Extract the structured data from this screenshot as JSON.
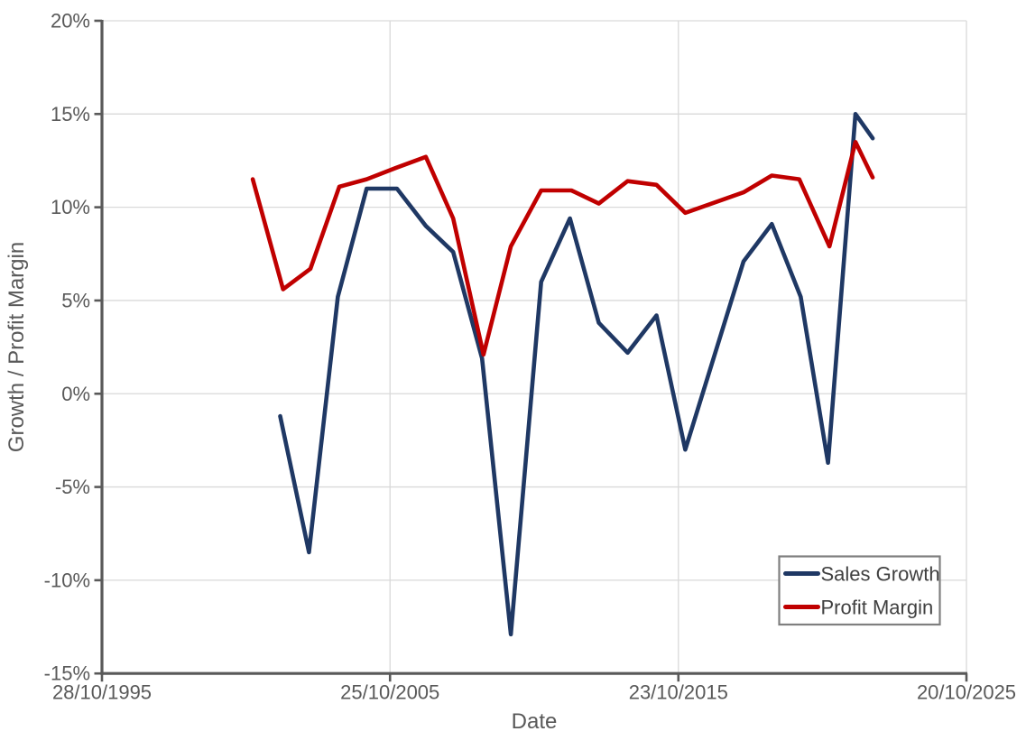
{
  "window": {
    "background": "#FFFFFF"
  },
  "chart_data": {
    "type": "line",
    "title": "",
    "xlabel": "Date",
    "ylabel": "Growth / Profit Margin",
    "x_axis": {
      "ticks": [
        {
          "label": "28/10/1995",
          "year": 1995.82
        },
        {
          "label": "25/10/2005",
          "year": 2005.81
        },
        {
          "label": "23/10/2015",
          "year": 2015.81
        },
        {
          "label": "20/10/2025",
          "year": 2025.8
        }
      ],
      "range_years": [
        1995.82,
        2025.8
      ]
    },
    "y_axis": {
      "ticks": [
        {
          "label": "20%",
          "value": 20
        },
        {
          "label": "15%",
          "value": 15
        },
        {
          "label": "10%",
          "value": 10
        },
        {
          "label": "5%",
          "value": 5
        },
        {
          "label": "0%",
          "value": 0
        },
        {
          "label": "-5%",
          "value": -5
        },
        {
          "label": "-10%",
          "value": -10
        },
        {
          "label": "-15%",
          "value": -15
        }
      ],
      "range": [
        -15,
        20
      ],
      "unit": "percent"
    },
    "grid": true,
    "legend_position": "inside-bottom-right",
    "series": [
      {
        "name": "Sales Growth",
        "color": "#1F3864",
        "points": [
          [
            2002.0,
            -1.2
          ],
          [
            2003.0,
            -8.5
          ],
          [
            2004.0,
            5.2
          ],
          [
            2005.0,
            11.0
          ],
          [
            2006.05,
            11.0
          ],
          [
            2007.05,
            9.0
          ],
          [
            2008.0,
            7.6
          ],
          [
            2009.0,
            1.9
          ],
          [
            2010.0,
            -12.9
          ],
          [
            2011.05,
            6.0
          ],
          [
            2012.05,
            9.4
          ],
          [
            2013.05,
            3.8
          ],
          [
            2014.05,
            2.2
          ],
          [
            2015.05,
            4.2
          ],
          [
            2016.05,
            -3.0
          ],
          [
            2018.07,
            7.1
          ],
          [
            2019.05,
            9.1
          ],
          [
            2020.05,
            5.2
          ],
          [
            2021.0,
            -3.7
          ],
          [
            2021.95,
            15.0
          ],
          [
            2022.55,
            13.7
          ]
        ]
      },
      {
        "name": "Profit Margin",
        "color": "#C00000",
        "points": [
          [
            2001.05,
            11.5
          ],
          [
            2002.1,
            5.6
          ],
          [
            2003.05,
            6.7
          ],
          [
            2004.05,
            11.1
          ],
          [
            2005.0,
            11.5
          ],
          [
            2006.0,
            12.1
          ],
          [
            2007.05,
            12.7
          ],
          [
            2008.0,
            9.4
          ],
          [
            2009.05,
            2.1
          ],
          [
            2010.0,
            7.9
          ],
          [
            2011.05,
            10.9
          ],
          [
            2012.1,
            10.9
          ],
          [
            2013.05,
            10.2
          ],
          [
            2014.05,
            11.4
          ],
          [
            2015.05,
            11.2
          ],
          [
            2016.05,
            9.7
          ],
          [
            2018.07,
            10.8
          ],
          [
            2019.05,
            11.7
          ],
          [
            2020.0,
            11.5
          ],
          [
            2021.05,
            7.9
          ],
          [
            2021.95,
            13.5
          ],
          [
            2022.55,
            11.6
          ]
        ]
      }
    ],
    "colors": {
      "gridline": "#D9D9D9",
      "axis_line": "#595959",
      "axis_text": "#595959",
      "legend_text": "#404040",
      "legend_border": "#7F7F7F",
      "background": "#FFFFFF"
    }
  }
}
